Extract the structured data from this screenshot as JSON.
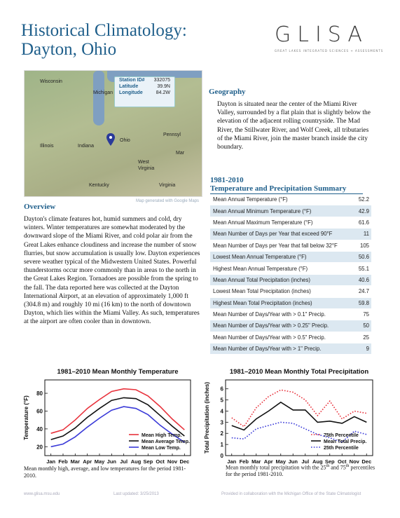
{
  "title_line1": "Historical Climatology:",
  "title_line2": "Dayton, Ohio",
  "logo": {
    "word": "GLISA",
    "tagline": "GREAT LAKES INTEGRATED SCIENCES + ASSESSMENTS"
  },
  "map": {
    "labels": [
      "Wisconsin",
      "Michigan",
      "Illinois",
      "Indiana",
      "Ohio",
      "Pennsyl",
      "West Virginia",
      "Kentucky",
      "Virginia",
      "Mar"
    ],
    "station": [
      {
        "k": "Station ID#",
        "v": "332075"
      },
      {
        "k": "Latitude",
        "v": "39.9N"
      },
      {
        "k": "Longitude",
        "v": "84.2W"
      }
    ],
    "credit": "Map generated with Google Maps"
  },
  "geography": {
    "heading": "Geography",
    "text": "Dayton is situated near the center of the Miami River Valley, surrounded by a flat plain that is slightly below the elevation of the adjacent rolling countryside.  The Mad River, the Stillwater River, and Wolf Creek, all tributaries of the Miami River, join the master branch inside the city boundary."
  },
  "overview": {
    "heading": "Overview",
    "text": "Dayton's climate features hot, humid summers and cold, dry winters. Winter temperatures are somewhat moderated by the downward slope of the Miami River, and cold polar air from the Great Lakes enhance cloudiness and increase the number of snow flurries, but snow accumulation is usually low. Dayton experiences severe weather typical of the Midwestern United States. Powerful thunderstorms occur more commonly than in areas to the north in the Great Lakes Region. Tornadoes are possible from the spring to the fall. The data reported here was collected at the Dayton International Airport, at an elevation of approximately 1,000 ft (304.8 m) and roughly 10 mi (16 km) to the north of downtown Dayton, which lies within the Miami Valley. As such, temperatures at the airport are often cooler than in downtown."
  },
  "summary": {
    "title_line1": "1981-2010",
    "title_line2": "Temperature and Precipitation Summary",
    "rows": [
      {
        "label": "Mean Annual Temperature (°F)",
        "value": "52.2"
      },
      {
        "label": "Mean Annual Minimum Temperature (°F)",
        "value": "42.9"
      },
      {
        "label": "Mean Annual Maximum Temperature (°F)",
        "value": "61.6"
      },
      {
        "label": "Mean Number of Days per Year that exceed 90°F",
        "value": "11"
      },
      {
        "label": "Mean Number of Days per Year that fall below 32°F",
        "value": "105"
      },
      {
        "label": "Lowest Mean Annual Temperature (°F)",
        "value": "50.6"
      },
      {
        "label": "Highest Mean Annual Temperature (°F)",
        "value": "55.1"
      },
      {
        "label": "Mean Annual Total Precipitation (inches)",
        "value": "40.6"
      },
      {
        "label": "Lowest Mean Total Precipitation (inches)",
        "value": "24.7"
      },
      {
        "label": "Highest Mean Total Precipitation (inches)",
        "value": "59.8"
      },
      {
        "label": "Mean Number of Days/Year with > 0.1\" Precip.",
        "value": "75"
      },
      {
        "label": "Mean Number of Days/Year with > 0.25\" Precip.",
        "value": "50"
      },
      {
        "label": "Mean Number of Days/Year with > 0.5\" Precip.",
        "value": "25"
      },
      {
        "label": "Mean Number of Days/Year with > 1\" Precip.",
        "value": "9"
      }
    ]
  },
  "chart_data": [
    {
      "type": "line",
      "title": "1981–2010 Mean Monthly Temperature",
      "xlabel": "",
      "ylabel": "Temperature (°F)",
      "categories": [
        "Jan",
        "Feb",
        "Mar",
        "Apr",
        "May",
        "Jun",
        "Jul",
        "Aug",
        "Sep",
        "Oct",
        "Nov",
        "Dec"
      ],
      "ylim": [
        10,
        95
      ],
      "yticks": [
        20,
        40,
        60,
        80
      ],
      "legend": "bottom-right",
      "series": [
        {
          "name": "Mean High Temp.",
          "color": "#e8323c",
          "dash": "solid",
          "values": [
            35,
            39,
            50,
            63,
            73,
            82,
            85,
            84,
            77,
            65,
            51,
            39
          ]
        },
        {
          "name": "Mean Average Temp.",
          "color": "#111111",
          "dash": "solid",
          "values": [
            28,
            32,
            41,
            53,
            63,
            72,
            75,
            74,
            67,
            55,
            43,
            32
          ]
        },
        {
          "name": "Mean Low Temp.",
          "color": "#3a3ad8",
          "dash": "solid",
          "values": [
            20,
            23,
            31,
            42,
            52,
            61,
            65,
            63,
            56,
            44,
            34,
            25
          ]
        }
      ]
    },
    {
      "type": "line",
      "title": "1981–2010 Mean Monthly Total Precipitation",
      "xlabel": "",
      "ylabel": "Total Precipitation (inches)",
      "categories": [
        "Jan",
        "Feb",
        "Mar",
        "Apr",
        "May",
        "Jun",
        "Jul",
        "Aug",
        "Sep",
        "Oct",
        "Nov",
        "Dec"
      ],
      "ylim": [
        0,
        6.8
      ],
      "yticks": [
        0,
        1,
        2,
        3,
        4,
        5,
        6
      ],
      "legend": "bottom-right",
      "series": [
        {
          "name": "75th Percentile",
          "color": "#e8323c",
          "dash": "dotted",
          "values": [
            3.4,
            2.6,
            4.3,
            5.3,
            5.9,
            5.7,
            5.0,
            3.6,
            4.9,
            3.3,
            4.0,
            3.8
          ]
        },
        {
          "name": "Mean Total Precip.",
          "color": "#111111",
          "dash": "solid",
          "values": [
            2.7,
            2.3,
            3.3,
            4.0,
            4.8,
            4.1,
            4.1,
            3.0,
            3.1,
            2.9,
            3.5,
            3.0
          ]
        },
        {
          "name": "25th Percentile",
          "color": "#3a3ad8",
          "dash": "dotted",
          "values": [
            1.6,
            1.5,
            2.4,
            2.7,
            3.0,
            2.9,
            2.4,
            1.9,
            1.6,
            1.2,
            2.2,
            1.9
          ]
        }
      ]
    }
  ],
  "captions": {
    "temp": "Mean monthly high, average, and low temperatures for the period 1981-2010.",
    "precip_pre": "Mean monthly total precipitation with the 25",
    "precip_sup1": "th",
    "precip_mid": " and 75",
    "precip_sup2": "th",
    "precip_post": " percentiles for the period 1981-2010."
  },
  "footer": {
    "url": "www.glisa.msu.edu",
    "updated": "Last updated: 3/25/2013",
    "credit": "Provided in collaboration with the Michigan Office of the State Climatologist"
  }
}
